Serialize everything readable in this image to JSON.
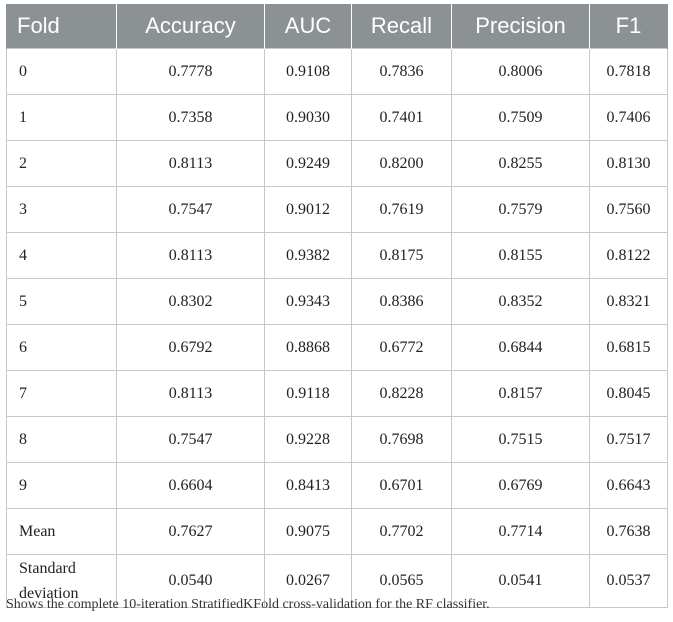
{
  "table": {
    "headers": [
      "Fold",
      "Accuracy",
      "AUC",
      "Recall",
      "Precision",
      "F1"
    ],
    "rows": [
      [
        "0",
        "0.7778",
        "0.9108",
        "0.7836",
        "0.8006",
        "0.7818"
      ],
      [
        "1",
        "0.7358",
        "0.9030",
        "0.7401",
        "0.7509",
        "0.7406"
      ],
      [
        "2",
        "0.8113",
        "0.9249",
        "0.8200",
        "0.8255",
        "0.8130"
      ],
      [
        "3",
        "0.7547",
        "0.9012",
        "0.7619",
        "0.7579",
        "0.7560"
      ],
      [
        "4",
        "0.8113",
        "0.9382",
        "0.8175",
        "0.8155",
        "0.8122"
      ],
      [
        "5",
        "0.8302",
        "0.9343",
        "0.8386",
        "0.8352",
        "0.8321"
      ],
      [
        "6",
        "0.6792",
        "0.8868",
        "0.6772",
        "0.6844",
        "0.6815"
      ],
      [
        "7",
        "0.8113",
        "0.9118",
        "0.8228",
        "0.8157",
        "0.8045"
      ],
      [
        "8",
        "0.7547",
        "0.9228",
        "0.7698",
        "0.7515",
        "0.7517"
      ],
      [
        "9",
        "0.6604",
        "0.8413",
        "0.6701",
        "0.6769",
        "0.6643"
      ],
      [
        "Mean",
        "0.7627",
        "0.9075",
        "0.7702",
        "0.7714",
        "0.7638"
      ],
      [
        "Standard\ndeviation",
        "0.0540",
        "0.0267",
        "0.0565",
        "0.0541",
        "0.0537"
      ]
    ]
  },
  "caption": "Shows the complete 10-iteration StratifiedKFold cross-validation for the RF classifier.",
  "colors": {
    "header_bg": "#8c9294",
    "header_text": "#ffffff",
    "grid": "#c8c8c8"
  }
}
